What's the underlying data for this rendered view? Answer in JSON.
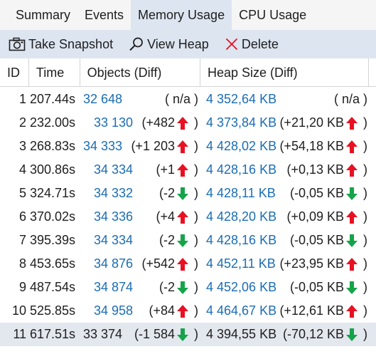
{
  "tabs": [
    {
      "label": "Summary",
      "active": false
    },
    {
      "label": "Events",
      "active": false
    },
    {
      "label": "Memory Usage",
      "active": true
    },
    {
      "label": "CPU Usage",
      "active": false
    }
  ],
  "toolbar": {
    "take_snapshot": "Take Snapshot",
    "view_heap": "View Heap",
    "delete": "Delete"
  },
  "columns": {
    "id": "ID",
    "time": "Time",
    "objects": "Objects (Diff)",
    "heap": "Heap Size (Diff)"
  },
  "colors": {
    "accent_blue": "#1a6db5",
    "arrow_up": "#e81123",
    "arrow_down": "#16a34a",
    "tab_active_bg": "#dde5f1",
    "selected_row_bg": "#e3e7ee"
  },
  "rows": [
    {
      "id": "1",
      "time": "207.44s",
      "objects": "32 648",
      "objects_diff": "( n/a )",
      "objects_dir": "none",
      "heap": "4 352,64 KB",
      "heap_diff": "( n/a )",
      "heap_dir": "none"
    },
    {
      "id": "2",
      "time": "232.00s",
      "objects": "33 130",
      "objects_diff": "(+482",
      "objects_dir": "up",
      "heap": "4 373,84 KB",
      "heap_diff": "(+21,20 KB",
      "heap_dir": "up"
    },
    {
      "id": "3",
      "time": "268.83s",
      "objects": "34 333",
      "objects_diff": "(+1 203",
      "objects_dir": "up",
      "heap": "4 428,02 KB",
      "heap_diff": "(+54,18 KB",
      "heap_dir": "up"
    },
    {
      "id": "4",
      "time": "300.86s",
      "objects": "34 334",
      "objects_diff": "(+1",
      "objects_dir": "up",
      "heap": "4 428,16 KB",
      "heap_diff": "(+0,13 KB",
      "heap_dir": "up"
    },
    {
      "id": "5",
      "time": "324.71s",
      "objects": "34 332",
      "objects_diff": "(-2",
      "objects_dir": "down",
      "heap": "4 428,11 KB",
      "heap_diff": "(-0,05 KB",
      "heap_dir": "down"
    },
    {
      "id": "6",
      "time": "370.02s",
      "objects": "34 336",
      "objects_diff": "(+4",
      "objects_dir": "up",
      "heap": "4 428,20 KB",
      "heap_diff": "(+0,09 KB",
      "heap_dir": "up"
    },
    {
      "id": "7",
      "time": "395.39s",
      "objects": "34 334",
      "objects_diff": "(-2",
      "objects_dir": "down",
      "heap": "4 428,16 KB",
      "heap_diff": "(-0,05 KB",
      "heap_dir": "down"
    },
    {
      "id": "8",
      "time": "453.65s",
      "objects": "34 876",
      "objects_diff": "(+542",
      "objects_dir": "up",
      "heap": "4 452,11 KB",
      "heap_diff": "(+23,95 KB",
      "heap_dir": "up"
    },
    {
      "id": "9",
      "time": "487.54s",
      "objects": "34 874",
      "objects_diff": "(-2",
      "objects_dir": "down",
      "heap": "4 452,06 KB",
      "heap_diff": "(-0,05 KB",
      "heap_dir": "down"
    },
    {
      "id": "10",
      "time": "525.85s",
      "objects": "34 958",
      "objects_diff": "(+84",
      "objects_dir": "up",
      "heap": "4 464,67 KB",
      "heap_diff": "(+12,61 KB",
      "heap_dir": "up"
    },
    {
      "id": "11",
      "time": "617.51s",
      "objects": "33 374",
      "objects_diff": "(-1 584",
      "objects_dir": "down",
      "heap": "4 394,55 KB",
      "heap_diff": "(-70,12 KB",
      "heap_dir": "down",
      "selected": true
    }
  ]
}
